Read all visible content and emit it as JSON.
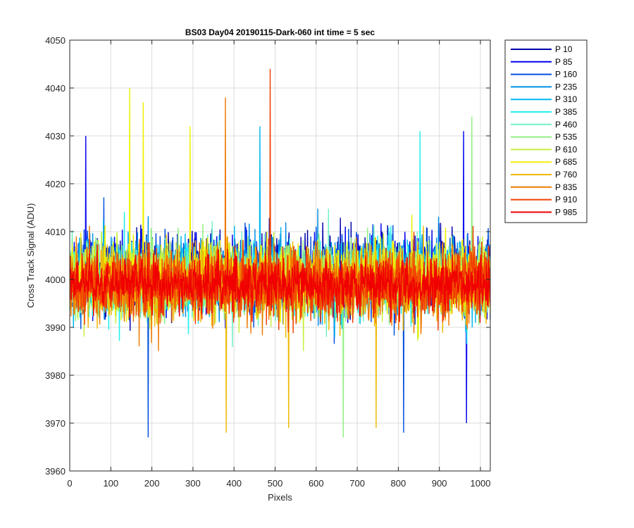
{
  "chart_data": {
    "type": "line",
    "title": "BS03 Day04 20190115-Dark-060 int time = 5 sec",
    "xlabel": "Pixels",
    "ylabel": "Cross Track Signal (ADU)",
    "xlim": [
      0,
      1024
    ],
    "ylim": [
      3960,
      4050
    ],
    "xticks": [
      0,
      100,
      200,
      300,
      400,
      500,
      600,
      700,
      800,
      900,
      1000
    ],
    "yticks": [
      3960,
      3970,
      3980,
      3990,
      4000,
      4010,
      4020,
      4030,
      4040,
      4050
    ],
    "grid": true,
    "legend_position": "outside-right-top",
    "n_points": 1024,
    "series": [
      {
        "name": "P 10",
        "color": "#0000AA",
        "mean": 4002,
        "spread": 8
      },
      {
        "name": "P 85",
        "color": "#0000EE",
        "mean": 4001,
        "spread": 8
      },
      {
        "name": "P 160",
        "color": "#0050DD",
        "mean": 4001,
        "spread": 8
      },
      {
        "name": "P 235",
        "color": "#0090E8",
        "mean": 4001,
        "spread": 8
      },
      {
        "name": "P 310",
        "color": "#00B8F0",
        "mean": 4000,
        "spread": 8
      },
      {
        "name": "P 385",
        "color": "#20F0F0",
        "mean": 4000,
        "spread": 8
      },
      {
        "name": "P 460",
        "color": "#70F0C8",
        "mean": 4000,
        "spread": 8
      },
      {
        "name": "P 535",
        "color": "#90F080",
        "mean": 4000,
        "spread": 8
      },
      {
        "name": "P 610",
        "color": "#C8F040",
        "mean": 4000,
        "spread": 8
      },
      {
        "name": "P 685",
        "color": "#F0F000",
        "mean": 4000,
        "spread": 8
      },
      {
        "name": "P 760",
        "color": "#F0B800",
        "mean": 3999,
        "spread": 8
      },
      {
        "name": "P 835",
        "color": "#F07800",
        "mean": 3999,
        "spread": 8
      },
      {
        "name": "P 910",
        "color": "#F04000",
        "mean": 3999,
        "spread": 8
      },
      {
        "name": "P 985",
        "color": "#F00000",
        "mean": 3999,
        "spread": 6
      }
    ],
    "notable_peaks": [
      {
        "series": "P 910",
        "x": 487,
        "y": 4044
      },
      {
        "series": "P 685",
        "x": 145,
        "y": 4040
      },
      {
        "series": "P 835",
        "x": 378,
        "y": 4038
      },
      {
        "series": "P 685",
        "x": 178,
        "y": 4037
      },
      {
        "series": "P 535",
        "x": 978,
        "y": 4034
      },
      {
        "series": "P 685",
        "x": 292,
        "y": 4032
      },
      {
        "series": "P 310",
        "x": 462,
        "y": 4032
      },
      {
        "series": "P 85",
        "x": 38,
        "y": 4030
      },
      {
        "series": "P 85",
        "x": 958,
        "y": 4031
      },
      {
        "series": "P 385",
        "x": 852,
        "y": 4031
      }
    ],
    "notable_troughs": [
      {
        "series": "P 160",
        "x": 190,
        "y": 3967
      },
      {
        "series": "P 535",
        "x": 665,
        "y": 3967
      },
      {
        "series": "P 160",
        "x": 812,
        "y": 3968
      },
      {
        "series": "P 760",
        "x": 380,
        "y": 3968
      },
      {
        "series": "P 760",
        "x": 532,
        "y": 3969
      },
      {
        "series": "P 760",
        "x": 745,
        "y": 3969
      },
      {
        "series": "P 85",
        "x": 965,
        "y": 3970
      }
    ]
  }
}
